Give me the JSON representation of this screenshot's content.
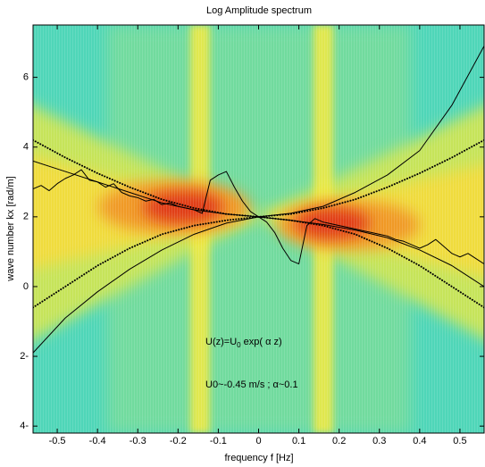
{
  "chart_data": {
    "type": "line",
    "title": "Log Amplitude spectrum",
    "x_label": "frequency f [Hz]",
    "y_label": "wave number kx [rad/m]",
    "xlim": [
      -0.56,
      0.56
    ],
    "ylim": [
      -4.2,
      7.5
    ],
    "xticks": [
      -0.5,
      -0.4,
      -0.3,
      -0.2,
      -0.1,
      0,
      0.1,
      0.2,
      0.3,
      0.4,
      0.5
    ],
    "yticks": [
      {
        "value": -4,
        "label": "4-"
      },
      {
        "value": -2,
        "label": "2-"
      },
      0,
      2,
      4,
      6
    ],
    "series": [
      {
        "color": "#000000",
        "linestyle": "dotted",
        "x": [
          -0.56,
          -0.48,
          -0.4,
          -0.32,
          -0.24,
          -0.16,
          -0.08,
          0,
          0.08,
          0.16,
          0.24,
          0.32,
          0.4,
          0.48,
          0.56
        ],
        "values": [
          4.2,
          3.7,
          3.25,
          2.85,
          2.5,
          2.25,
          2.08,
          2.0,
          1.9,
          1.75,
          1.5,
          1.1,
          0.6,
          0.0,
          -0.6
        ]
      },
      {
        "color": "#000000",
        "linestyle": "dotted",
        "x": [
          -0.56,
          -0.48,
          -0.4,
          -0.32,
          -0.24,
          -0.16,
          -0.08,
          0,
          0.08,
          0.16,
          0.24,
          0.32,
          0.4,
          0.48,
          0.56
        ],
        "values": [
          -0.6,
          0.0,
          0.6,
          1.1,
          1.5,
          1.75,
          1.9,
          2.0,
          2.08,
          2.25,
          2.5,
          2.85,
          3.25,
          3.7,
          4.2
        ]
      },
      {
        "color": "#000000",
        "linestyle": "solid",
        "x": [
          -0.56,
          -0.48,
          -0.4,
          -0.32,
          -0.24,
          -0.16,
          -0.08,
          0,
          0.08,
          0.16,
          0.24,
          0.32,
          0.4,
          0.48,
          0.56
        ],
        "values": [
          3.6,
          3.3,
          3.0,
          2.7,
          2.4,
          2.2,
          2.08,
          2.0,
          1.9,
          1.78,
          1.62,
          1.4,
          1.05,
          0.6,
          0.0
        ]
      },
      {
        "color": "#000000",
        "linestyle": "solid",
        "x": [
          -0.56,
          -0.48,
          -0.4,
          -0.32,
          -0.24,
          -0.16,
          -0.08,
          0,
          0.08,
          0.16,
          0.24,
          0.32,
          0.4,
          0.48,
          0.56
        ],
        "values": [
          -1.9,
          -0.9,
          -0.15,
          0.5,
          1.05,
          1.5,
          1.82,
          2.0,
          2.1,
          2.3,
          2.7,
          3.2,
          3.9,
          5.2,
          6.9
        ]
      },
      {
        "color": "#000000",
        "linestyle": "solid",
        "x": [
          -0.56,
          -0.54,
          -0.52,
          -0.5,
          -0.48,
          -0.46,
          -0.44,
          -0.42,
          -0.4,
          -0.38,
          -0.36,
          -0.34,
          -0.32,
          -0.3,
          -0.28,
          -0.26,
          -0.24,
          -0.22,
          -0.2,
          -0.18,
          -0.16,
          -0.14,
          -0.12,
          -0.1,
          -0.08,
          -0.06,
          -0.04,
          -0.02,
          0,
          0.02,
          0.04,
          0.06,
          0.08,
          0.1,
          0.12,
          0.14,
          0.16,
          0.18,
          0.2,
          0.22,
          0.24,
          0.26,
          0.28,
          0.3,
          0.32,
          0.34,
          0.36,
          0.38,
          0.4,
          0.42,
          0.44,
          0.46,
          0.48,
          0.5,
          0.52,
          0.54,
          0.56
        ],
        "values": [
          2.8,
          2.9,
          2.75,
          2.95,
          3.1,
          3.2,
          3.35,
          3.05,
          3.0,
          2.85,
          2.95,
          2.7,
          2.6,
          2.55,
          2.45,
          2.5,
          2.35,
          2.4,
          2.3,
          2.25,
          2.2,
          2.1,
          3.05,
          3.2,
          3.3,
          2.85,
          2.45,
          2.15,
          2.0,
          1.85,
          1.55,
          1.1,
          0.75,
          0.65,
          1.75,
          1.95,
          1.85,
          1.8,
          1.75,
          1.7,
          1.65,
          1.6,
          1.55,
          1.5,
          1.45,
          1.35,
          1.3,
          1.2,
          1.1,
          1.2,
          1.35,
          1.15,
          0.95,
          0.85,
          0.95,
          0.8,
          0.65
        ]
      }
    ],
    "annotations": [
      {
        "text": "U(z)=U",
        "subscript": "0",
        "after": " exp( α z)"
      },
      {
        "text": "U0~-0.45 m/s ;  α~0.1"
      }
    ]
  }
}
